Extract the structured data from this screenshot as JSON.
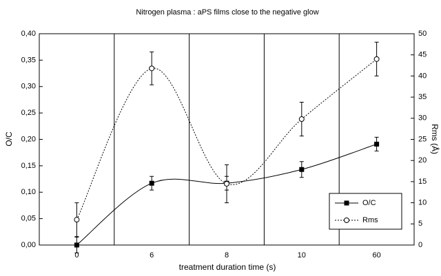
{
  "chart_data": {
    "type": "line",
    "title": "Nitrogen plasma : aPS films close to the negative glow",
    "x_label": "treatment duration time (s)",
    "y_label": "O/C",
    "y2_label": "Rms (Å)",
    "categories": [
      "0",
      "6",
      "8",
      "10",
      "60"
    ],
    "ylim": [
      0,
      0.4
    ],
    "yticks": [
      {
        "value": 0,
        "label": "0,00"
      },
      {
        "value": 0.05,
        "label": "0,05"
      },
      {
        "value": 0.1,
        "label": "0,10"
      },
      {
        "value": 0.15,
        "label": "0,15"
      },
      {
        "value": 0.2,
        "label": "0,20"
      },
      {
        "value": 0.25,
        "label": "0,25"
      },
      {
        "value": 0.3,
        "label": "0,30"
      },
      {
        "value": 0.35,
        "label": "0,35"
      },
      {
        "value": 0.4,
        "label": "0,40"
      }
    ],
    "y2lim": [
      0,
      50
    ],
    "y2ticks": [
      0,
      5,
      10,
      15,
      20,
      25,
      30,
      35,
      40,
      45,
      50
    ],
    "legend": "right",
    "series": [
      {
        "name": "O/C",
        "color": "#000000",
        "line_style": "solid",
        "marker": "square",
        "values": [
          0,
          0.117,
          0.117,
          0.143,
          0.191
        ],
        "errors": [
          0.015,
          0.013,
          0.013,
          0.015,
          0.013
        ]
      },
      {
        "name": "Rms",
        "color": "#000000",
        "line_style": "dotted",
        "marker": "circle",
        "axis": "y2",
        "values": [
          6,
          41.8,
          14.5,
          29.8,
          44
        ],
        "errors": [
          4,
          3.9,
          4.5,
          4,
          4
        ]
      }
    ]
  }
}
